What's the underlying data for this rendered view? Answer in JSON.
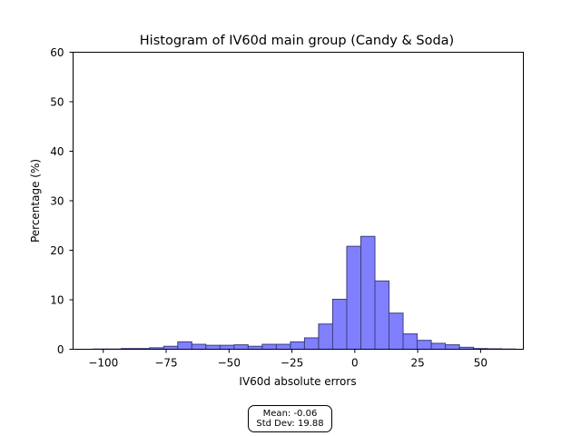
{
  "chart_data": {
    "type": "bar",
    "title": "Histogram of IV60d main group (Candy & Soda)",
    "xlabel": "IV60d absolute errors",
    "ylabel": "Percentage (%)",
    "xlim": [
      -112,
      67
    ],
    "ylim": [
      0,
      60
    ],
    "xticks": [
      -100,
      -75,
      -50,
      -25,
      0,
      25,
      50
    ],
    "xtick_labels": [
      "−100",
      "−75",
      "−50",
      "−25",
      "0",
      "25",
      "50"
    ],
    "yticks": [
      0,
      10,
      20,
      30,
      40,
      50,
      60
    ],
    "ytick_labels": [
      "0",
      "10",
      "20",
      "30",
      "40",
      "50",
      "60"
    ],
    "bin_width": 5.6,
    "bins": [
      {
        "left": -104.0,
        "value": 0.05
      },
      {
        "left": -98.4,
        "value": 0.05
      },
      {
        "left": -92.8,
        "value": 0.15
      },
      {
        "left": -87.2,
        "value": 0.15
      },
      {
        "left": -81.6,
        "value": 0.3
      },
      {
        "left": -76.0,
        "value": 0.6
      },
      {
        "left": -70.4,
        "value": 1.5
      },
      {
        "left": -64.8,
        "value": 1.0
      },
      {
        "left": -59.2,
        "value": 0.8
      },
      {
        "left": -53.6,
        "value": 0.8
      },
      {
        "left": -48.0,
        "value": 0.9
      },
      {
        "left": -42.4,
        "value": 0.6
      },
      {
        "left": -36.8,
        "value": 1.0
      },
      {
        "left": -31.2,
        "value": 1.0
      },
      {
        "left": -25.6,
        "value": 1.5
      },
      {
        "left": -20.0,
        "value": 2.3
      },
      {
        "left": -14.4,
        "value": 5.1
      },
      {
        "left": -8.8,
        "value": 10.1
      },
      {
        "left": -3.2,
        "value": 20.8
      },
      {
        "left": 2.4,
        "value": 22.8
      },
      {
        "left": 8.0,
        "value": 13.8
      },
      {
        "left": 13.6,
        "value": 7.3
      },
      {
        "left": 19.2,
        "value": 3.1
      },
      {
        "left": 24.8,
        "value": 1.8
      },
      {
        "left": 30.4,
        "value": 1.2
      },
      {
        "left": 36.0,
        "value": 0.9
      },
      {
        "left": 41.6,
        "value": 0.4
      },
      {
        "left": 47.2,
        "value": 0.15
      },
      {
        "left": 52.8,
        "value": 0.1
      },
      {
        "left": 58.4,
        "value": 0.05
      }
    ],
    "bar_color": "#8080ff",
    "bar_edge_color": "#3d3d80",
    "grid": false,
    "annotation": {
      "mean_label": "Mean: -0.06",
      "std_label": "Std Dev: 19.88"
    }
  }
}
